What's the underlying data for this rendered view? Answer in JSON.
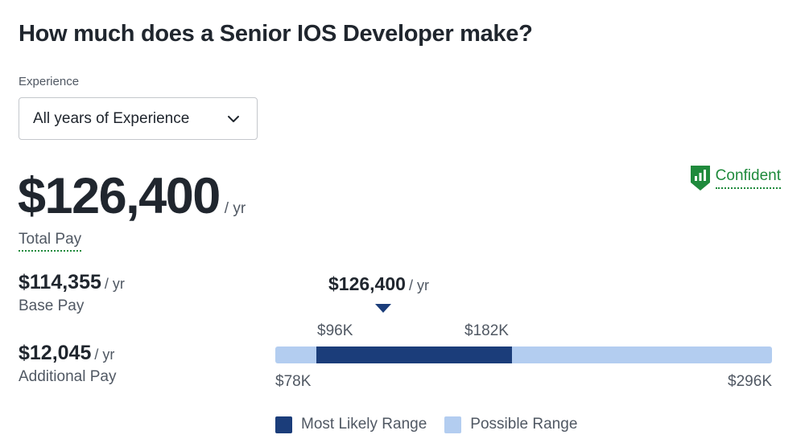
{
  "title": "How much does a Senior IOS Developer make?",
  "experience": {
    "label": "Experience",
    "selected": "All years of Experience"
  },
  "confidence": {
    "label": "Confident",
    "icon": "bar-chart-shield-icon",
    "color": "#1f8a3c"
  },
  "total": {
    "amount": "$126,400",
    "unit": "/ yr",
    "label": "Total Pay"
  },
  "base": {
    "amount": "$114,355",
    "unit": "/ yr",
    "label": "Base Pay"
  },
  "additional": {
    "amount": "$12,045",
    "unit": "/ yr",
    "label": "Additional Pay"
  },
  "range": {
    "marker_amount": "$126,400",
    "marker_unit": "/ yr",
    "possible_min_label": "$78K",
    "possible_max_label": "$296K",
    "likely_min_label": "$96K",
    "likely_max_label": "$182K",
    "possible_min": 78000,
    "possible_max": 296000,
    "likely_min": 96000,
    "likely_max": 182000,
    "marker_value": 126400,
    "likely_color": "#1b3d7a",
    "possible_color": "#b3cdf0"
  },
  "legend": {
    "likely": "Most Likely Range",
    "possible": "Possible Range"
  }
}
